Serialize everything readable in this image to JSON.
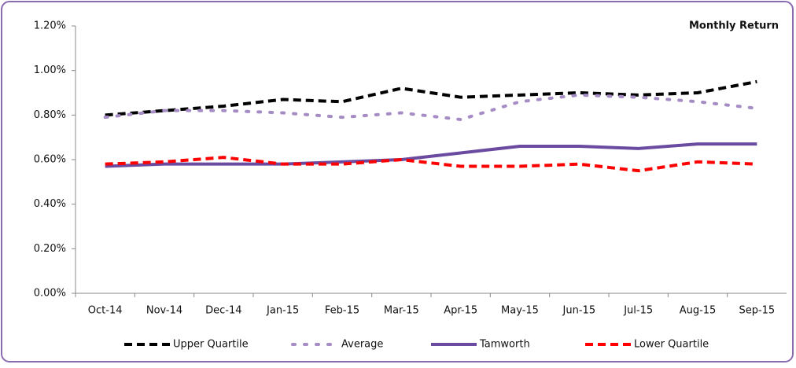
{
  "chart_data": {
    "type": "line",
    "annotation": "Monthly Return",
    "categories": [
      "Oct-14",
      "Nov-14",
      "Dec-14",
      "Jan-15",
      "Feb-15",
      "Mar-15",
      "Apr-15",
      "May-15",
      "Jun-15",
      "Jul-15",
      "Aug-15",
      "Sep-15"
    ],
    "series": [
      {
        "name": "Upper Quartile",
        "color": "#000000",
        "style": "dashed",
        "values": [
          0.8,
          0.82,
          0.84,
          0.87,
          0.86,
          0.92,
          0.88,
          0.89,
          0.9,
          0.89,
          0.9,
          0.95
        ]
      },
      {
        "name": "Average",
        "color": "#a58cc4",
        "style": "dotted",
        "values": [
          0.79,
          0.82,
          0.82,
          0.81,
          0.79,
          0.81,
          0.78,
          0.86,
          0.89,
          0.88,
          0.86,
          0.83
        ]
      },
      {
        "name": "Tamworth",
        "color": "#6a4ba0",
        "style": "solid",
        "values": [
          0.57,
          0.58,
          0.58,
          0.58,
          0.59,
          0.6,
          0.63,
          0.66,
          0.66,
          0.65,
          0.67,
          0.67
        ]
      },
      {
        "name": "Lower Quartile",
        "color": "#ff0000",
        "style": "dashed",
        "values": [
          0.58,
          0.59,
          0.61,
          0.58,
          0.58,
          0.6,
          0.57,
          0.57,
          0.58,
          0.55,
          0.59,
          0.58
        ]
      }
    ],
    "ylim": [
      0,
      1.2
    ],
    "yticks": [
      {
        "value": 0,
        "label": "0.00%"
      },
      {
        "value": 0.2,
        "label": "0.20%"
      },
      {
        "value": 0.4,
        "label": "0.40%"
      },
      {
        "value": 0.6,
        "label": "0.60%"
      },
      {
        "value": 0.8,
        "label": "0.80%"
      },
      {
        "value": 1.0,
        "label": "1.00%"
      },
      {
        "value": 1.2,
        "label": "1.20%"
      }
    ],
    "legend": "bottom"
  }
}
